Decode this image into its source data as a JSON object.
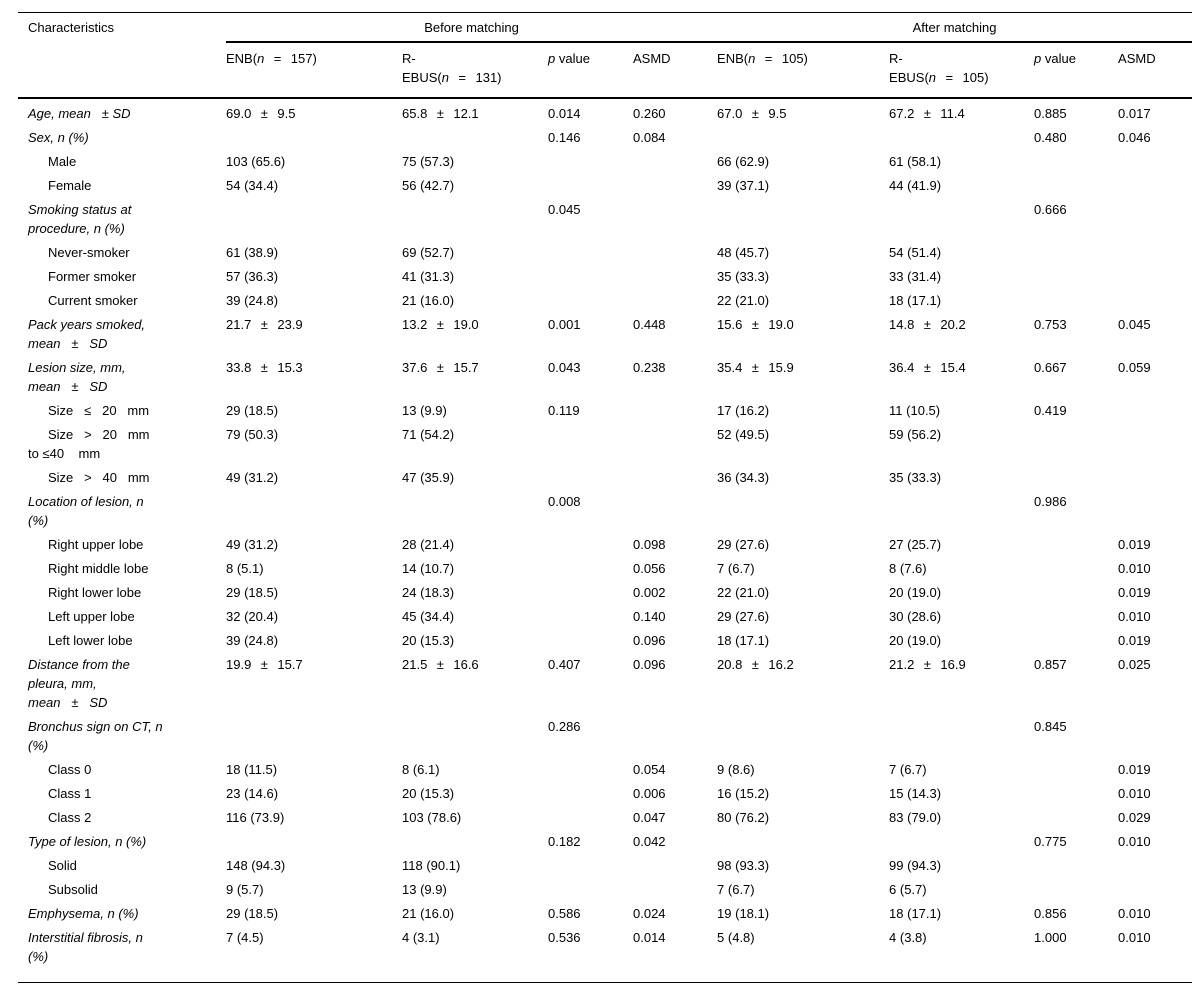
{
  "header": {
    "characteristics": "Characteristics",
    "group_before": "Before matching",
    "group_after": "After matching",
    "columns": [
      {
        "ws": true,
        "segments": [
          {
            "t": "ENB("
          },
          {
            "t": "n",
            "i": true
          },
          {
            "t": " = 157)"
          }
        ]
      },
      {
        "ws": true,
        "segments": [
          {
            "t": "R-\nEBUS("
          },
          {
            "t": "n",
            "i": true
          },
          {
            "t": " = 131)"
          }
        ]
      },
      {
        "ws": false,
        "segments": [
          {
            "t": "p",
            "i": true
          },
          {
            "t": " value"
          }
        ]
      },
      {
        "ws": false,
        "segments": [
          {
            "t": "ASMD"
          }
        ]
      },
      {
        "ws": true,
        "segments": [
          {
            "t": "ENB("
          },
          {
            "t": "n",
            "i": true
          },
          {
            "t": " = 105)"
          }
        ]
      },
      {
        "ws": true,
        "segments": [
          {
            "t": "R-\nEBUS("
          },
          {
            "t": "n",
            "i": true
          },
          {
            "t": " = 105)"
          }
        ]
      },
      {
        "ws": false,
        "segments": [
          {
            "t": "p",
            "i": true
          },
          {
            "t": " value"
          }
        ]
      },
      {
        "ws": false,
        "segments": [
          {
            "t": "ASMD"
          }
        ]
      }
    ]
  },
  "rows": [
    {
      "label": "Age, mean   ± SD",
      "style": "main",
      "cells": [
        "69.0 ± 9.5",
        "65.8 ± 12.1",
        "0.014",
        "0.260",
        "67.0 ± 9.5",
        "67.2 ± 11.4",
        "0.885",
        "0.017"
      ]
    },
    {
      "label": "Sex, n (%)",
      "style": "main",
      "cells": [
        "",
        "",
        "0.146",
        "0.084",
        "",
        "",
        "0.480",
        "0.046"
      ]
    },
    {
      "label": "Male",
      "style": "sub",
      "cells": [
        "103 (65.6)",
        "75 (57.3)",
        "",
        "",
        "66 (62.9)",
        "61 (58.1)",
        "",
        ""
      ]
    },
    {
      "label": "Female",
      "style": "sub",
      "cells": [
        "54 (34.4)",
        "56 (42.7)",
        "",
        "",
        "39 (37.1)",
        "44 (41.9)",
        "",
        ""
      ]
    },
    {
      "label": "Smoking status at\nprocedure, n (%)",
      "style": "main",
      "cells": [
        "",
        "",
        "0.045",
        "",
        "",
        "",
        "0.666",
        ""
      ]
    },
    {
      "label": "Never-smoker",
      "style": "sub",
      "cells": [
        "61 (38.9)",
        "69 (52.7)",
        "",
        "",
        "48 (45.7)",
        "54 (51.4)",
        "",
        ""
      ]
    },
    {
      "label": "Former smoker",
      "style": "sub",
      "cells": [
        "57 (36.3)",
        "41 (31.3)",
        "",
        "",
        "35 (33.3)",
        "33 (31.4)",
        "",
        ""
      ]
    },
    {
      "label": "Current smoker",
      "style": "sub",
      "cells": [
        "39 (24.8)",
        "21 (16.0)",
        "",
        "",
        "22 (21.0)",
        "18 (17.1)",
        "",
        ""
      ]
    },
    {
      "label": "Pack years smoked,\nmean   ±   SD",
      "style": "main",
      "cells": [
        "21.7 ± 23.9",
        "13.2 ± 19.0",
        "0.001",
        "0.448",
        "15.6 ± 19.0",
        "14.8 ± 20.2",
        "0.753",
        "0.045"
      ]
    },
    {
      "label": "Lesion size, mm,\nmean   ±   SD",
      "style": "main",
      "cells": [
        "33.8 ± 15.3",
        "37.6 ± 15.7",
        "0.043",
        "0.238",
        "35.4 ± 15.9",
        "36.4 ± 15.4",
        "0.667",
        "0.059"
      ]
    },
    {
      "label": "Size   ≤   20   mm",
      "style": "sub",
      "cells": [
        "29 (18.5)",
        "13 (9.9)",
        "0.119",
        "",
        "17 (16.2)",
        "11 (10.5)",
        "0.419",
        ""
      ]
    },
    {
      "label": "Size   >   20   mm\nto ≤40    mm",
      "style": "sub",
      "cells": [
        "79 (50.3)",
        "71 (54.2)",
        "",
        "",
        "52 (49.5)",
        "59 (56.2)",
        "",
        ""
      ]
    },
    {
      "label": "Size   >   40   mm",
      "style": "sub",
      "cells": [
        "49 (31.2)",
        "47 (35.9)",
        "",
        "",
        "36 (34.3)",
        "35 (33.3)",
        "",
        ""
      ]
    },
    {
      "label": "Location of lesion, n\n(%)",
      "style": "main",
      "cells": [
        "",
        "",
        "0.008",
        "",
        "",
        "",
        "0.986",
        ""
      ]
    },
    {
      "label": "Right upper lobe",
      "style": "sub",
      "cells": [
        "49 (31.2)",
        "28 (21.4)",
        "",
        "0.098",
        "29 (27.6)",
        "27 (25.7)",
        "",
        "0.019"
      ]
    },
    {
      "label": "Right middle lobe",
      "style": "sub",
      "cells": [
        "8 (5.1)",
        "14 (10.7)",
        "",
        "0.056",
        "7 (6.7)",
        "8 (7.6)",
        "",
        "0.010"
      ]
    },
    {
      "label": "Right lower lobe",
      "style": "sub",
      "cells": [
        "29 (18.5)",
        "24 (18.3)",
        "",
        "0.002",
        "22 (21.0)",
        "20 (19.0)",
        "",
        "0.019"
      ]
    },
    {
      "label": "Left upper lobe",
      "style": "sub",
      "cells": [
        "32 (20.4)",
        "45 (34.4)",
        "",
        "0.140",
        "29 (27.6)",
        "30 (28.6)",
        "",
        "0.010"
      ]
    },
    {
      "label": "Left lower lobe",
      "style": "sub",
      "cells": [
        "39 (24.8)",
        "20 (15.3)",
        "",
        "0.096",
        "18 (17.1)",
        "20 (19.0)",
        "",
        "0.019"
      ]
    },
    {
      "label": "Distance from the\npleura, mm,\nmean   ±   SD",
      "style": "main",
      "cells": [
        "19.9 ± 15.7",
        "21.5 ± 16.6",
        "0.407",
        "0.096",
        "20.8 ± 16.2",
        "21.2 ± 16.9",
        "0.857",
        "0.025"
      ]
    },
    {
      "label": "Bronchus sign on CT, n\n(%)",
      "style": "main",
      "cells": [
        "",
        "",
        "0.286",
        "",
        "",
        "",
        "0.845",
        ""
      ]
    },
    {
      "label": "Class 0",
      "style": "sub",
      "cells": [
        "18 (11.5)",
        "8 (6.1)",
        "",
        "0.054",
        "9 (8.6)",
        "7 (6.7)",
        "",
        "0.019"
      ]
    },
    {
      "label": "Class 1",
      "style": "sub",
      "cells": [
        "23 (14.6)",
        "20 (15.3)",
        "",
        "0.006",
        "16 (15.2)",
        "15 (14.3)",
        "",
        "0.010"
      ]
    },
    {
      "label": "Class 2",
      "style": "sub",
      "cells": [
        "116 (73.9)",
        "103 (78.6)",
        "",
        "0.047",
        "80 (76.2)",
        "83 (79.0)",
        "",
        "0.029"
      ]
    },
    {
      "label": "Type of lesion, n (%)",
      "style": "main",
      "cells": [
        "",
        "",
        "0.182",
        "0.042",
        "",
        "",
        "0.775",
        "0.010"
      ]
    },
    {
      "label": "Solid",
      "style": "sub",
      "cells": [
        "148 (94.3)",
        "118 (90.1)",
        "",
        "",
        "98 (93.3)",
        "99 (94.3)",
        "",
        ""
      ]
    },
    {
      "label": "Subsolid",
      "style": "sub",
      "cells": [
        "9 (5.7)",
        "13 (9.9)",
        "",
        "",
        "7 (6.7)",
        "6 (5.7)",
        "",
        ""
      ]
    },
    {
      "label": "Emphysema, n (%)",
      "style": "main",
      "cells": [
        "29 (18.5)",
        "21 (16.0)",
        "0.586",
        "0.024",
        "19 (18.1)",
        "18 (17.1)",
        "0.856",
        "0.010"
      ]
    },
    {
      "label": "Interstitial fibrosis, n\n(%)",
      "style": "main",
      "cells": [
        "7 (4.5)",
        "4 (3.1)",
        "0.536",
        "0.014",
        "5 (4.8)",
        "4 (3.8)",
        "1.000",
        "0.010"
      ]
    }
  ]
}
